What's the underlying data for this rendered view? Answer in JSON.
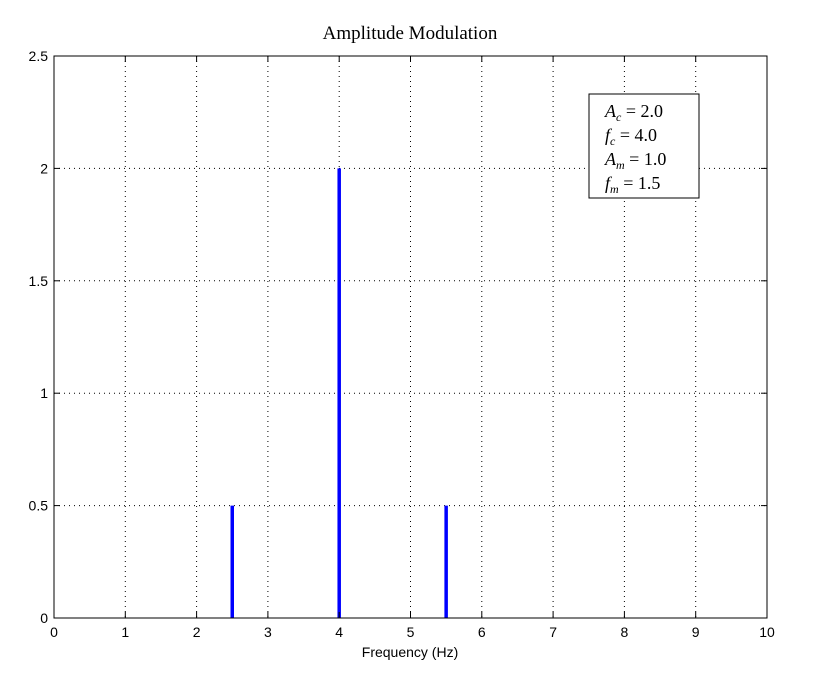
{
  "chart_data": {
    "type": "bar",
    "title": "Amplitude Modulation",
    "xlabel": "Frequency (Hz)",
    "ylabel": "",
    "xlim": [
      0,
      10
    ],
    "ylim": [
      0,
      2.5
    ],
    "grid": true,
    "x_ticks": [
      0,
      1,
      2,
      3,
      4,
      5,
      6,
      7,
      8,
      9,
      10
    ],
    "x_tick_labels": [
      "0",
      "1",
      "2",
      "3",
      "4",
      "5",
      "6",
      "7",
      "8",
      "9",
      "10"
    ],
    "y_ticks": [
      0,
      0.5,
      1,
      1.5,
      2,
      2.5
    ],
    "y_tick_labels": [
      "0",
      "0.5",
      "1",
      "1.5",
      "2",
      "2.5"
    ],
    "series": [
      {
        "color": "#0000ff",
        "points": [
          {
            "x": 2.5,
            "y": 0.5
          },
          {
            "x": 4.0,
            "y": 2.0
          },
          {
            "x": 5.5,
            "y": 0.5
          }
        ]
      }
    ],
    "legend_position": "top-right",
    "annotation": [
      {
        "symbol": "A",
        "sub": "c",
        "rhs": "= 2.0"
      },
      {
        "symbol": "f",
        "sub": "c",
        "rhs": "= 4.0"
      },
      {
        "symbol": "A",
        "sub": "m",
        "rhs": "= 1.0"
      },
      {
        "symbol": "f",
        "sub": "m",
        "rhs": "= 1.5"
      }
    ]
  }
}
